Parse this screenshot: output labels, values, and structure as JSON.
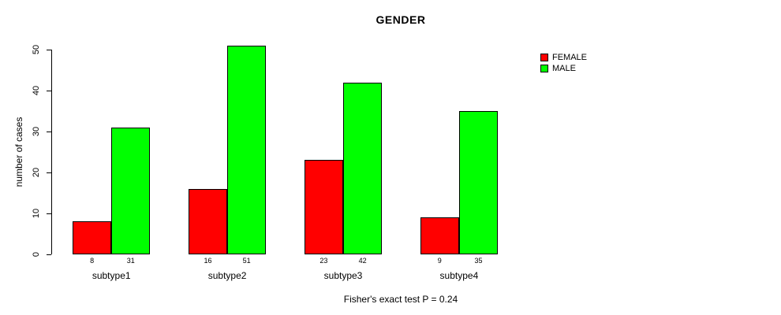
{
  "title": "GENDER",
  "ylabel": "number of cases",
  "footer": "Fisher's exact test P = 0.24",
  "legend": [
    {
      "label": "FEMALE",
      "color": "#ff0000"
    },
    {
      "label": "MALE",
      "color": "#00ff00"
    }
  ],
  "colors": {
    "female": "#ff0000",
    "male": "#00ff00",
    "axis": "#000000",
    "background": "#ffffff"
  },
  "chart_data": {
    "type": "bar",
    "title": "GENDER",
    "xlabel": "",
    "ylabel": "number of cases",
    "categories": [
      "subtype1",
      "subtype2",
      "subtype3",
      "subtype4"
    ],
    "series": [
      {
        "name": "FEMALE",
        "color": "#ff0000",
        "values": [
          8,
          16,
          23,
          9
        ]
      },
      {
        "name": "MALE",
        "color": "#00ff00",
        "values": [
          31,
          51,
          42,
          35
        ]
      }
    ],
    "bar_value_labels": [
      [
        8,
        31
      ],
      [
        16,
        51
      ],
      [
        23,
        42
      ],
      [
        9,
        35
      ]
    ],
    "ylim": [
      0,
      50
    ],
    "yticks": [
      0,
      10,
      20,
      30,
      40,
      50
    ],
    "grid": false,
    "legend_position": "top-right",
    "annotation": "Fisher's exact test P = 0.24"
  }
}
